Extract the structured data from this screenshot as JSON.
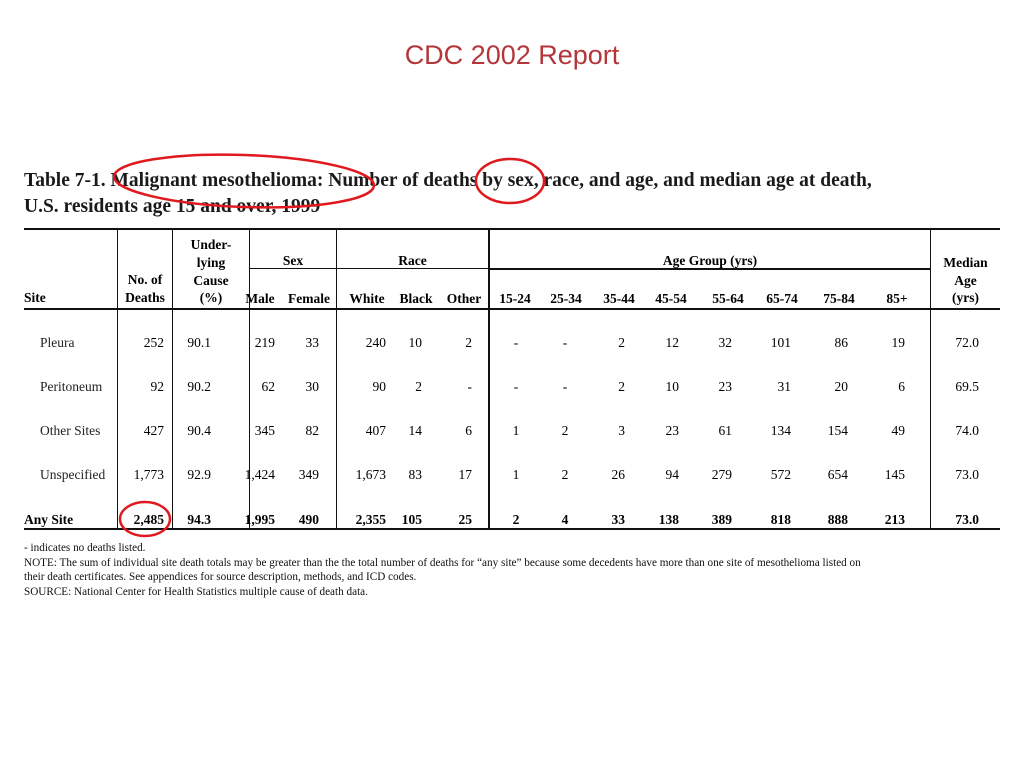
{
  "slide_title": "CDC 2002 Report",
  "table_title_line1": "Table 7-1. Malignant mesothelioma: Number of deaths by sex, race, and age, and median age at death,",
  "table_title_line2": "U.S. residents age 15 and over, 1999",
  "headers": {
    "site": "Site",
    "no_of": "No. of",
    "deaths": "Deaths",
    "under": "Under-",
    "lying": "lying",
    "cause": "Cause",
    "pct": "(%)",
    "sex": "Sex",
    "race": "Race",
    "age_group": "Age Group (yrs)",
    "median": "Median",
    "age": "Age",
    "yrs": "(yrs)",
    "male": "Male",
    "female": "Female",
    "white": "White",
    "black": "Black",
    "other": "Other",
    "age_cols": [
      "15-24",
      "25-34",
      "35-44",
      "45-54",
      "55-64",
      "65-74",
      "75-84",
      "85+"
    ]
  },
  "rows": [
    {
      "site": "Pleura",
      "deaths": "252",
      "cause": "90.1",
      "male": "219",
      "female": "33",
      "white": "240",
      "black": "10",
      "other": "2",
      "ages": [
        "-",
        "-",
        "2",
        "12",
        "32",
        "101",
        "86",
        "19"
      ],
      "median": "72.0"
    },
    {
      "site": "Peritoneum",
      "deaths": "92",
      "cause": "90.2",
      "male": "62",
      "female": "30",
      "white": "90",
      "black": "2",
      "other": "-",
      "ages": [
        "-",
        "-",
        "2",
        "10",
        "23",
        "31",
        "20",
        "6"
      ],
      "median": "69.5"
    },
    {
      "site": "Other Sites",
      "deaths": "427",
      "cause": "90.4",
      "male": "345",
      "female": "82",
      "white": "407",
      "black": "14",
      "other": "6",
      "ages": [
        "1",
        "2",
        "3",
        "23",
        "61",
        "134",
        "154",
        "49"
      ],
      "median": "74.0"
    },
    {
      "site": "Unspecified",
      "deaths": "1,773",
      "cause": "92.9",
      "male": "1,424",
      "female": "349",
      "white": "1,673",
      "black": "83",
      "other": "17",
      "ages": [
        "1",
        "2",
        "26",
        "94",
        "279",
        "572",
        "654",
        "145"
      ],
      "median": "73.0"
    },
    {
      "site": "Any Site",
      "deaths": "2,485",
      "cause": "94.3",
      "male": "1,995",
      "female": "490",
      "white": "2,355",
      "black": "105",
      "other": "25",
      "ages": [
        "2",
        "4",
        "33",
        "138",
        "389",
        "818",
        "888",
        "213"
      ],
      "median": "73.0"
    }
  ],
  "notes": [
    "- indicates no deaths listed.",
    "NOTE:  The sum of individual site death totals may be greater than the the total number of deaths for “any site” because some decedents have more than one site of mesothelioma listed on",
    "their death certificates.  See appendices for source description, methods, and ICD codes.",
    "SOURCE:  National Center for Health Statistics multiple cause of death data."
  ],
  "annotation_color": "#e0191f"
}
